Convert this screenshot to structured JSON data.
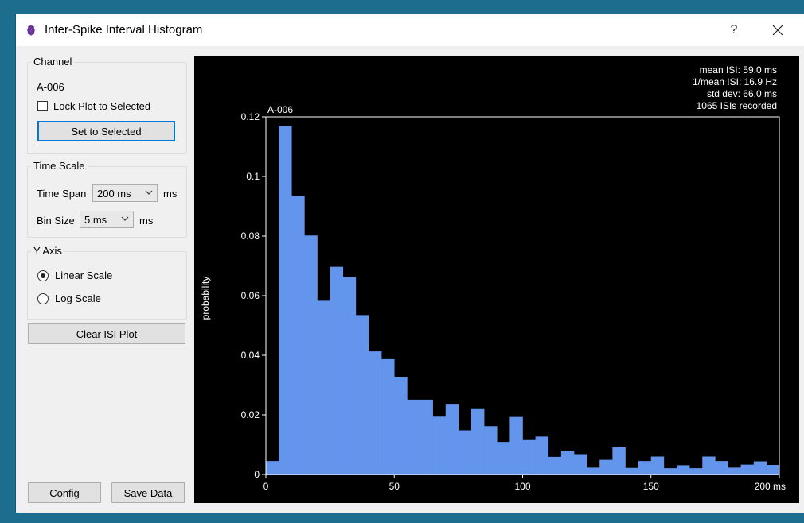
{
  "window": {
    "title": "Inter-Spike Interval Histogram",
    "help": "?",
    "close": "✕"
  },
  "channel": {
    "group_title": "Channel",
    "name": "A-006",
    "lock_label": "Lock Plot to Selected",
    "lock_checked": false,
    "set_button": "Set to Selected"
  },
  "time_scale": {
    "group_title": "Time Scale",
    "span_label": "Time Span",
    "span_value": "200 ms",
    "span_unit": "ms",
    "bin_label": "Bin Size",
    "bin_value": "5 ms",
    "bin_unit": "ms"
  },
  "y_axis": {
    "group_title": "Y Axis",
    "linear_label": "Linear Scale",
    "log_label": "Log Scale",
    "selected": "linear"
  },
  "buttons": {
    "clear": "Clear ISI Plot",
    "config": "Config",
    "save": "Save Data"
  },
  "stats": {
    "mean": "mean ISI: 59.0 ms",
    "inv_mean": "1/mean ISI: 16.9 Hz",
    "std": "std dev: 66.0 ms",
    "count": "1065 ISIs recorded"
  },
  "colors": {
    "bar": "#6495ed",
    "plot_bg": "#000000",
    "axis": "#ffffff",
    "focus": "#0078d7"
  },
  "chart_data": {
    "type": "bar",
    "title": "A-006",
    "ylabel": "probability",
    "xlabel": "",
    "x_unit": "ms",
    "xlim": [
      0,
      200
    ],
    "ylim": [
      0,
      0.12
    ],
    "bin_width": 5,
    "xticks": [
      "0",
      "50",
      "100",
      "150",
      "200 ms"
    ],
    "yticks": [
      "0",
      "0.02",
      "0.04",
      "0.06",
      "0.08",
      "0.1",
      "0.12"
    ],
    "bin_starts": [
      0,
      5,
      10,
      15,
      20,
      25,
      30,
      35,
      40,
      45,
      50,
      55,
      60,
      65,
      70,
      75,
      80,
      85,
      90,
      95,
      100,
      105,
      110,
      115,
      120,
      125,
      130,
      135,
      140,
      145,
      150,
      155,
      160,
      165,
      170,
      175,
      180,
      185,
      190,
      195
    ],
    "values": [
      0.0045,
      0.117,
      0.0935,
      0.0802,
      0.0583,
      0.0697,
      0.0663,
      0.0535,
      0.0413,
      0.0387,
      0.0328,
      0.0251,
      0.0251,
      0.0194,
      0.0237,
      0.0148,
      0.0222,
      0.0162,
      0.0109,
      0.0193,
      0.0118,
      0.0127,
      0.0059,
      0.0079,
      0.0068,
      0.0023,
      0.0049,
      0.0091,
      0.0022,
      0.0045,
      0.006,
      0.0021,
      0.0031,
      0.0021,
      0.006,
      0.0045,
      0.0023,
      0.0033,
      0.0044,
      0.0032
    ]
  }
}
